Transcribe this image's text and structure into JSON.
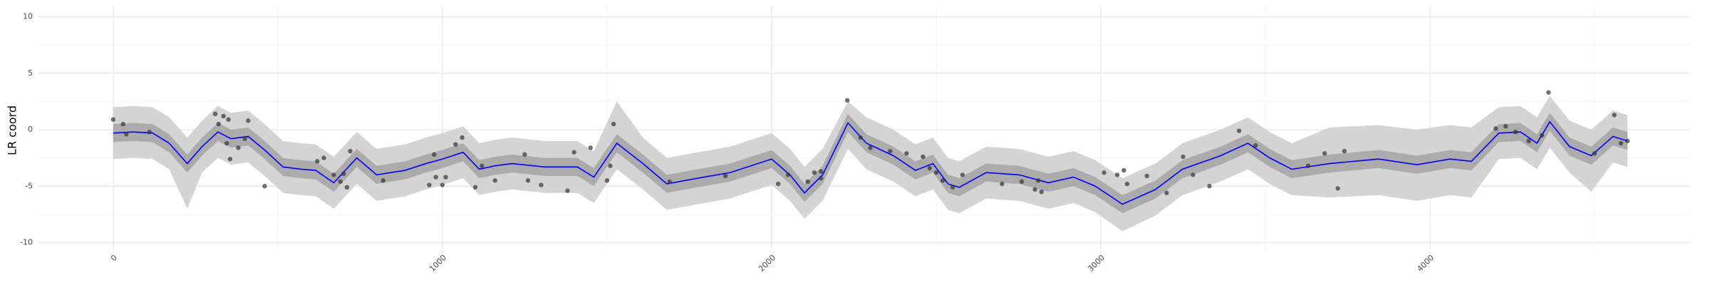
{
  "chart_data": {
    "type": "line",
    "y_label": "LR coord",
    "color": "#0000ff",
    "x": [
      0,
      60,
      120,
      170,
      225,
      270,
      318,
      358,
      410,
      460,
      516,
      570,
      615,
      670,
      740,
      800,
      887,
      950,
      1000,
      1063,
      1112,
      1160,
      1212,
      1311,
      1410,
      1460,
      1530,
      1609,
      1682,
      1775,
      1874,
      2000,
      2056,
      2100,
      2155,
      2232,
      2288,
      2370,
      2437,
      2490,
      2536,
      2570,
      2652,
      2752,
      2841,
      2917,
      2983,
      3066,
      3166,
      3248,
      3364,
      3447,
      3513,
      3580,
      3695,
      3844,
      3960,
      4060,
      4126,
      4209,
      4275,
      4325,
      4364,
      4424,
      4490,
      4556,
      4600
    ],
    "values": [
      -0.3,
      -0.2,
      -0.3,
      -1.2,
      -3.0,
      -1.5,
      -0.2,
      -0.8,
      -0.6,
      -1.8,
      -3.3,
      -3.5,
      -3.6,
      -4.7,
      -2.5,
      -4.0,
      -3.6,
      -3.0,
      -2.6,
      -2.0,
      -3.5,
      -3.2,
      -3.0,
      -3.3,
      -3.3,
      -4.2,
      -1.2,
      -3.0,
      -4.8,
      -4.3,
      -3.8,
      -2.6,
      -4.0,
      -5.6,
      -4.0,
      0.6,
      -1.2,
      -2.3,
      -3.6,
      -3.0,
      -4.8,
      -5.1,
      -3.8,
      -4.0,
      -4.7,
      -4.2,
      -5.0,
      -6.6,
      -5.3,
      -3.5,
      -2.3,
      -1.2,
      -2.5,
      -3.5,
      -3.0,
      -2.6,
      -3.1,
      -2.6,
      -2.8,
      -0.3,
      -0.2,
      -1.2,
      0.7,
      -1.5,
      -2.3,
      -0.6,
      -1.0
    ],
    "ribbon_outer": {
      "color": "#d4d4d4",
      "lower": [
        -2.6,
        -2.5,
        -2.6,
        -3.5,
        -7.0,
        -3.8,
        -2.5,
        -3.1,
        -2.9,
        -4.1,
        -5.6,
        -5.8,
        -5.9,
        -7.0,
        -4.8,
        -6.3,
        -5.9,
        -5.3,
        -4.9,
        -4.3,
        -5.8,
        -5.5,
        -5.3,
        -5.6,
        -5.6,
        -6.5,
        -3.5,
        -5.3,
        -7.1,
        -6.6,
        -6.1,
        -4.9,
        -6.3,
        -7.9,
        -6.3,
        -1.7,
        -3.5,
        -4.6,
        -5.9,
        -5.3,
        -7.1,
        -7.4,
        -6.1,
        -6.3,
        -7.0,
        -6.5,
        -7.3,
        -9.0,
        -7.6,
        -5.8,
        -4.6,
        -3.5,
        -4.8,
        -5.8,
        -6.0,
        -5.8,
        -6.3,
        -5.8,
        -6.0,
        -2.6,
        -2.5,
        -3.5,
        -1.6,
        -3.8,
        -5.5,
        -2.9,
        -3.3
      ],
      "upper": [
        2.0,
        2.1,
        2.0,
        1.1,
        -0.7,
        0.8,
        2.1,
        1.5,
        1.7,
        0.5,
        -1.0,
        -1.2,
        -1.3,
        -2.4,
        -0.2,
        -1.7,
        -1.3,
        -0.7,
        -0.3,
        0.3,
        -1.2,
        -0.9,
        -0.7,
        -1.0,
        -1.0,
        -1.9,
        2.5,
        -0.7,
        -2.5,
        -2.0,
        -1.5,
        -0.3,
        -1.7,
        -3.3,
        -1.7,
        2.5,
        1.1,
        0.0,
        -1.3,
        -0.7,
        -2.5,
        -2.8,
        -1.5,
        -1.7,
        -2.4,
        -1.9,
        -2.7,
        -4.3,
        -3.0,
        -1.2,
        0.0,
        1.1,
        -0.2,
        -1.2,
        0.2,
        0.4,
        0.0,
        0.4,
        0.2,
        2.0,
        2.1,
        1.1,
        3.0,
        0.8,
        0.0,
        1.7,
        1.3
      ]
    },
    "ribbon_inner": {
      "color": "#ababab",
      "lower": [
        -1.1,
        -1.0,
        -1.1,
        -2.0,
        -3.8,
        -2.3,
        -1.0,
        -1.6,
        -1.4,
        -2.6,
        -4.1,
        -4.3,
        -4.4,
        -5.5,
        -3.3,
        -4.8,
        -4.4,
        -3.8,
        -3.4,
        -2.8,
        -4.3,
        -4.0,
        -3.8,
        -4.1,
        -4.1,
        -5.0,
        -2.0,
        -3.8,
        -5.6,
        -5.1,
        -4.6,
        -3.4,
        -4.8,
        -6.4,
        -4.8,
        -0.2,
        -2.0,
        -3.1,
        -4.4,
        -3.8,
        -5.6,
        -5.9,
        -4.6,
        -4.8,
        -5.5,
        -5.0,
        -5.8,
        -7.4,
        -6.1,
        -4.3,
        -3.1,
        -2.0,
        -3.3,
        -4.3,
        -3.8,
        -3.4,
        -3.9,
        -3.4,
        -3.6,
        -1.1,
        -1.0,
        -2.0,
        -0.1,
        -2.3,
        -3.1,
        -1.4,
        -1.8
      ],
      "upper": [
        0.5,
        0.6,
        0.5,
        -0.4,
        -2.2,
        -0.7,
        0.6,
        0.0,
        0.2,
        -1.0,
        -2.5,
        -2.7,
        -2.8,
        -3.9,
        -1.7,
        -3.2,
        -2.8,
        -2.2,
        -1.8,
        -1.2,
        -2.7,
        -2.4,
        -2.2,
        -2.5,
        -2.5,
        -3.4,
        -0.4,
        -2.2,
        -4.0,
        -3.5,
        -3.0,
        -1.8,
        -3.2,
        -4.8,
        -3.2,
        1.4,
        -0.4,
        -1.5,
        -2.8,
        -2.2,
        -4.0,
        -4.3,
        -3.0,
        -3.2,
        -3.9,
        -3.4,
        -4.2,
        -5.8,
        -4.5,
        -2.7,
        -1.5,
        -0.4,
        -1.7,
        -2.7,
        -2.2,
        -1.8,
        -2.3,
        -1.8,
        -2.0,
        0.5,
        0.6,
        -0.4,
        1.5,
        -0.7,
        -1.5,
        0.2,
        -0.2
      ]
    },
    "points": {
      "color": "#333333",
      "x": [
        0,
        30,
        40,
        110,
        310,
        320,
        335,
        350,
        345,
        355,
        380,
        400,
        410,
        460,
        620,
        640,
        670,
        690,
        700,
        710,
        720,
        820,
        960,
        980,
        975,
        1000,
        1010,
        1040,
        1060,
        1100,
        1120,
        1160,
        1250,
        1260,
        1300,
        1380,
        1400,
        1450,
        1500,
        1510,
        1520,
        1690,
        1860,
        2020,
        2050,
        2110,
        2130,
        2150,
        2150,
        2230,
        2270,
        2300,
        2360,
        2410,
        2460,
        2480,
        2500,
        2520,
        2550,
        2580,
        2700,
        2760,
        2800,
        2820,
        2810,
        3010,
        3050,
        3070,
        3080,
        3140,
        3200,
        3250,
        3280,
        3330,
        3420,
        3470,
        3630,
        3680,
        3720,
        3740,
        4200,
        4230,
        4260,
        4300,
        4340,
        4360,
        4500,
        4560,
        4580,
        4600
      ],
      "y": [
        0.9,
        0.5,
        -0.4,
        -0.2,
        1.4,
        0.5,
        1.2,
        0.9,
        -1.2,
        -2.6,
        -1.6,
        -0.8,
        0.8,
        -5.0,
        -2.8,
        -2.5,
        -4.0,
        -4.6,
        -3.9,
        -5.1,
        -1.9,
        -4.5,
        -4.9,
        -4.2,
        -2.2,
        -4.9,
        -4.2,
        -1.3,
        -0.7,
        -5.1,
        -3.2,
        -4.5,
        -2.2,
        -4.5,
        -4.9,
        -5.4,
        -2.0,
        -1.6,
        -4.5,
        -3.2,
        0.5,
        -4.6,
        -4.1,
        -4.8,
        -4.0,
        -4.6,
        -3.8,
        -3.7,
        -4.3,
        2.6,
        -0.7,
        -1.6,
        -1.9,
        -2.1,
        -2.4,
        -3.4,
        -3.8,
        -4.5,
        -5.1,
        -4.0,
        -4.8,
        -4.6,
        -5.3,
        -5.5,
        -4.5,
        -3.8,
        -4.0,
        -3.6,
        -4.8,
        -4.1,
        -5.6,
        -2.4,
        -4.0,
        -5.0,
        -0.1,
        -1.4,
        -3.2,
        -2.1,
        -5.2,
        -1.9,
        0.1,
        0.3,
        -0.2,
        -1.0,
        -0.5,
        3.3,
        -2.1,
        1.3,
        -1.2,
        -1.0
      ]
    },
    "xlim": [
      -227,
      4790
    ],
    "ylim": [
      -10.6,
      10.98
    ],
    "xticks": [
      0,
      1000,
      2000,
      3000,
      4000
    ],
    "yticks": [
      -10,
      -5,
      0,
      5,
      10
    ],
    "x_minor_ticks": [
      500,
      1500,
      2500,
      3500,
      4500
    ],
    "y_minor_ticks": [
      -7.5,
      -2.5,
      2.5,
      7.5
    ],
    "grid": true
  }
}
